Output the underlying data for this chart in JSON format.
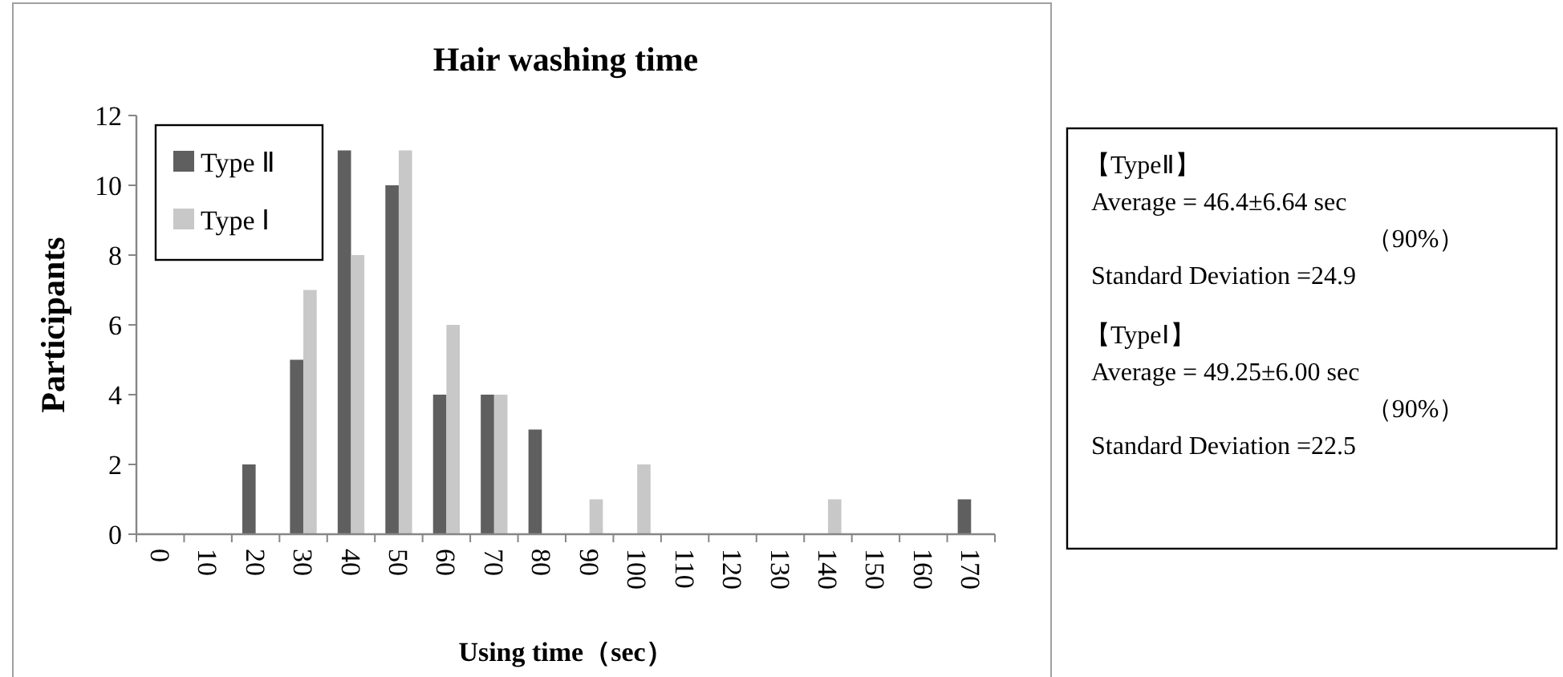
{
  "chart_data": {
    "type": "bar",
    "title": "Hair washing time",
    "xlabel": "Using time（sec）",
    "ylabel": "Participants",
    "categories": [
      "0",
      "10",
      "20",
      "30",
      "40",
      "50",
      "60",
      "70",
      "80",
      "90",
      "100",
      "110",
      "120",
      "130",
      "140",
      "150",
      "160",
      "170"
    ],
    "series": [
      {
        "name": "Type Ⅱ",
        "color": "#5f5f5f",
        "values": [
          0,
          0,
          2,
          5,
          11,
          10,
          4,
          4,
          3,
          0,
          0,
          0,
          0,
          0,
          0,
          0,
          0,
          1
        ]
      },
      {
        "name": "Type Ⅰ",
        "color": "#c8c8c8",
        "values": [
          0,
          0,
          0,
          7,
          8,
          11,
          6,
          4,
          0,
          1,
          2,
          0,
          0,
          0,
          1,
          0,
          0,
          0
        ]
      }
    ],
    "ylim": [
      0,
      12
    ],
    "yticks": [
      0,
      2,
      4,
      6,
      8,
      10,
      12
    ],
    "grid": false,
    "legend": "top left",
    "annotations": [
      "【TypeⅡ】",
      "Average = 46.4±6.64 sec",
      "（90%）",
      "Standard Deviation =24.9",
      "【TypeⅠ】",
      "Average = 49.25±6.00 sec",
      "（90%）",
      "Standard Deviation =22.5"
    ]
  }
}
